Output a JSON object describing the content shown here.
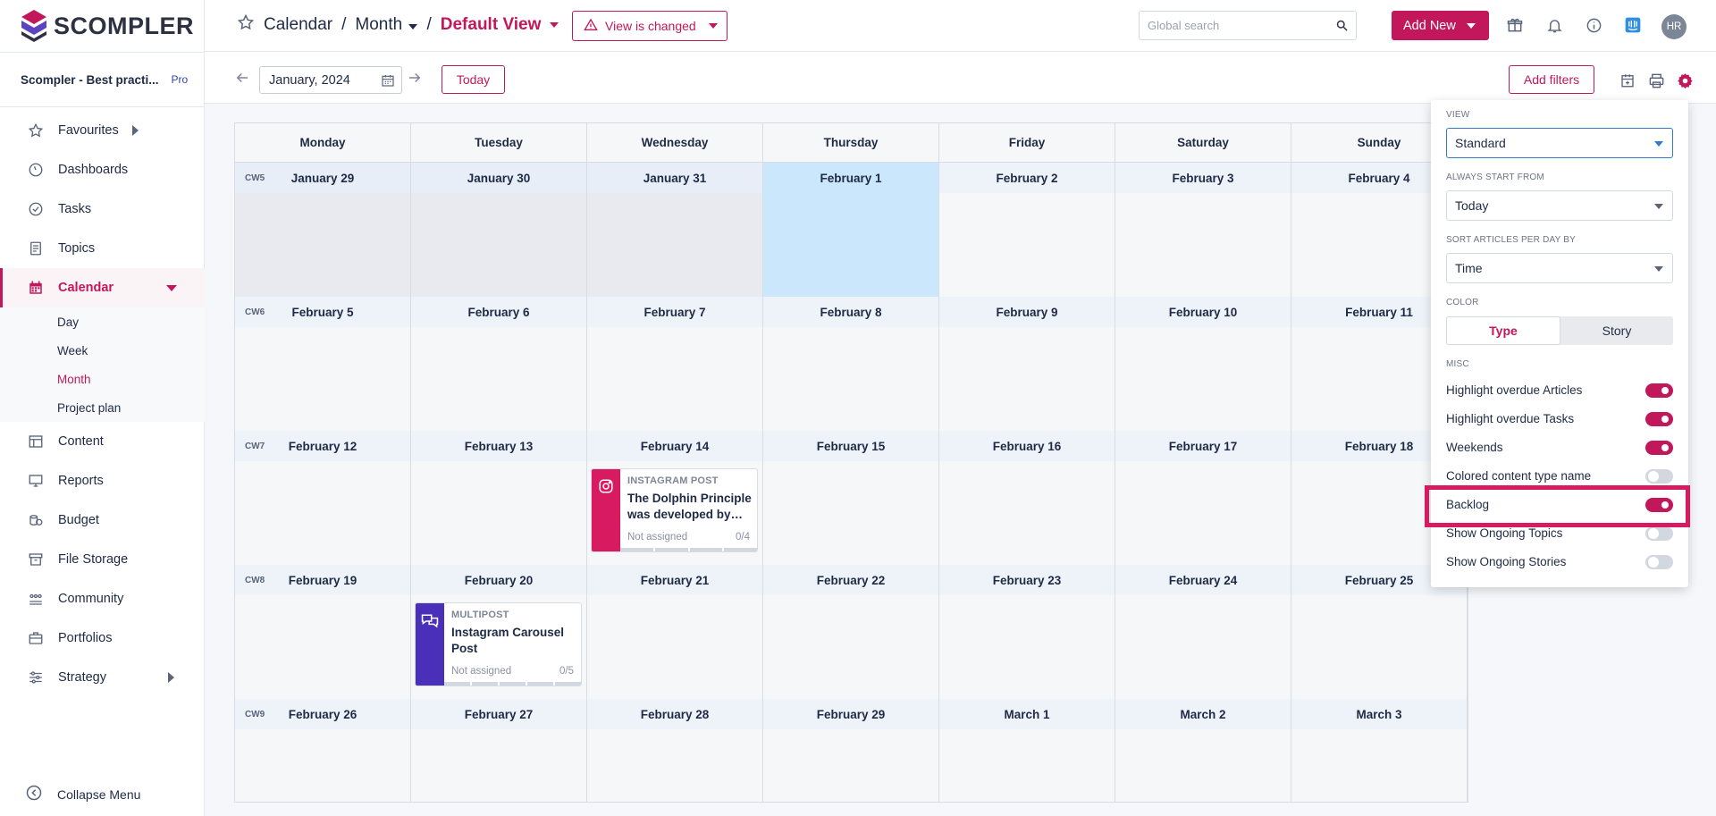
{
  "brand": {
    "name": "SCOMPLER",
    "accent": "#c2185b"
  },
  "workspace": {
    "name": "Scompler - Best practi...",
    "plan": "Pro"
  },
  "sidebar": {
    "items": [
      {
        "label": "Favourites",
        "icon": "star-icon"
      },
      {
        "label": "Dashboards",
        "icon": "gauge-icon"
      },
      {
        "label": "Tasks",
        "icon": "check-circle-icon"
      },
      {
        "label": "Topics",
        "icon": "document-icon"
      },
      {
        "label": "Calendar",
        "icon": "calendar-icon"
      },
      {
        "label": "Content",
        "icon": "table-icon"
      },
      {
        "label": "Reports",
        "icon": "monitor-icon"
      },
      {
        "label": "Budget",
        "icon": "coins-icon"
      },
      {
        "label": "File Storage",
        "icon": "archive-icon"
      },
      {
        "label": "Community",
        "icon": "people-icon"
      },
      {
        "label": "Portfolios",
        "icon": "briefcase-icon"
      },
      {
        "label": "Strategy",
        "icon": "sliders-icon"
      }
    ],
    "calendar_sub": [
      "Day",
      "Week",
      "Month",
      "Project plan"
    ],
    "collapse": "Collapse Menu"
  },
  "header": {
    "crumb1": "Calendar",
    "sep": "/",
    "crumb2": "Month",
    "view": "Default View",
    "changed": "View is changed",
    "search_placeholder": "Global search",
    "add_new": "Add New",
    "avatar": "HR"
  },
  "toolbar": {
    "date": "January, 2024",
    "today": "Today",
    "add_filters": "Add filters"
  },
  "calendar": {
    "weekdays": [
      "Monday",
      "Tuesday",
      "Wednesday",
      "Thursday",
      "Friday",
      "Saturday",
      "Sunday"
    ],
    "weeks": [
      {
        "cw": "CW5",
        "days": [
          "January 29",
          "January 30",
          "January 31",
          "February 1",
          "February 2",
          "February 3",
          "February 4"
        ]
      },
      {
        "cw": "CW6",
        "days": [
          "February 5",
          "February 6",
          "February 7",
          "February 8",
          "February 9",
          "February 10",
          "February 11"
        ]
      },
      {
        "cw": "CW7",
        "days": [
          "February 12",
          "February 13",
          "February 14",
          "February 15",
          "February 16",
          "February 17",
          "February 18"
        ]
      },
      {
        "cw": "CW8",
        "days": [
          "February 19",
          "February 20",
          "February 21",
          "February 22",
          "February 23",
          "February 24",
          "February 25"
        ]
      },
      {
        "cw": "CW9",
        "days": [
          "February 26",
          "February 27",
          "February 28",
          "February 29",
          "March 1",
          "March 2",
          "March 3"
        ]
      }
    ],
    "cards": {
      "instagram": {
        "type": "INSTAGRAM POST",
        "title": "The Dolphin Principle was developed by…",
        "assigned": "Not assigned",
        "count": "0/4",
        "color": "#d81b60"
      },
      "multipost": {
        "type": "MULTIPOST",
        "title": "Instagram Carousel Post",
        "assigned": "Not assigned",
        "count": "0/5",
        "color": "#4a2fb8"
      }
    }
  },
  "settings": {
    "view_label": "VIEW",
    "view_value": "Standard",
    "start_label": "ALWAYS START FROM",
    "start_value": "Today",
    "sort_label": "SORT ARTICLES PER DAY BY",
    "sort_value": "Time",
    "color_label": "COLOR",
    "color_type": "Type",
    "color_story": "Story",
    "misc_label": "MISC",
    "toggles": [
      {
        "label": "Highlight overdue Articles",
        "on": true
      },
      {
        "label": "Highlight overdue Tasks",
        "on": true
      },
      {
        "label": "Weekends",
        "on": true
      },
      {
        "label": "Colored content type name",
        "on": false
      },
      {
        "label": "Backlog",
        "on": true
      },
      {
        "label": "Show Ongoing Topics",
        "on": false
      },
      {
        "label": "Show Ongoing Stories",
        "on": false
      }
    ]
  }
}
